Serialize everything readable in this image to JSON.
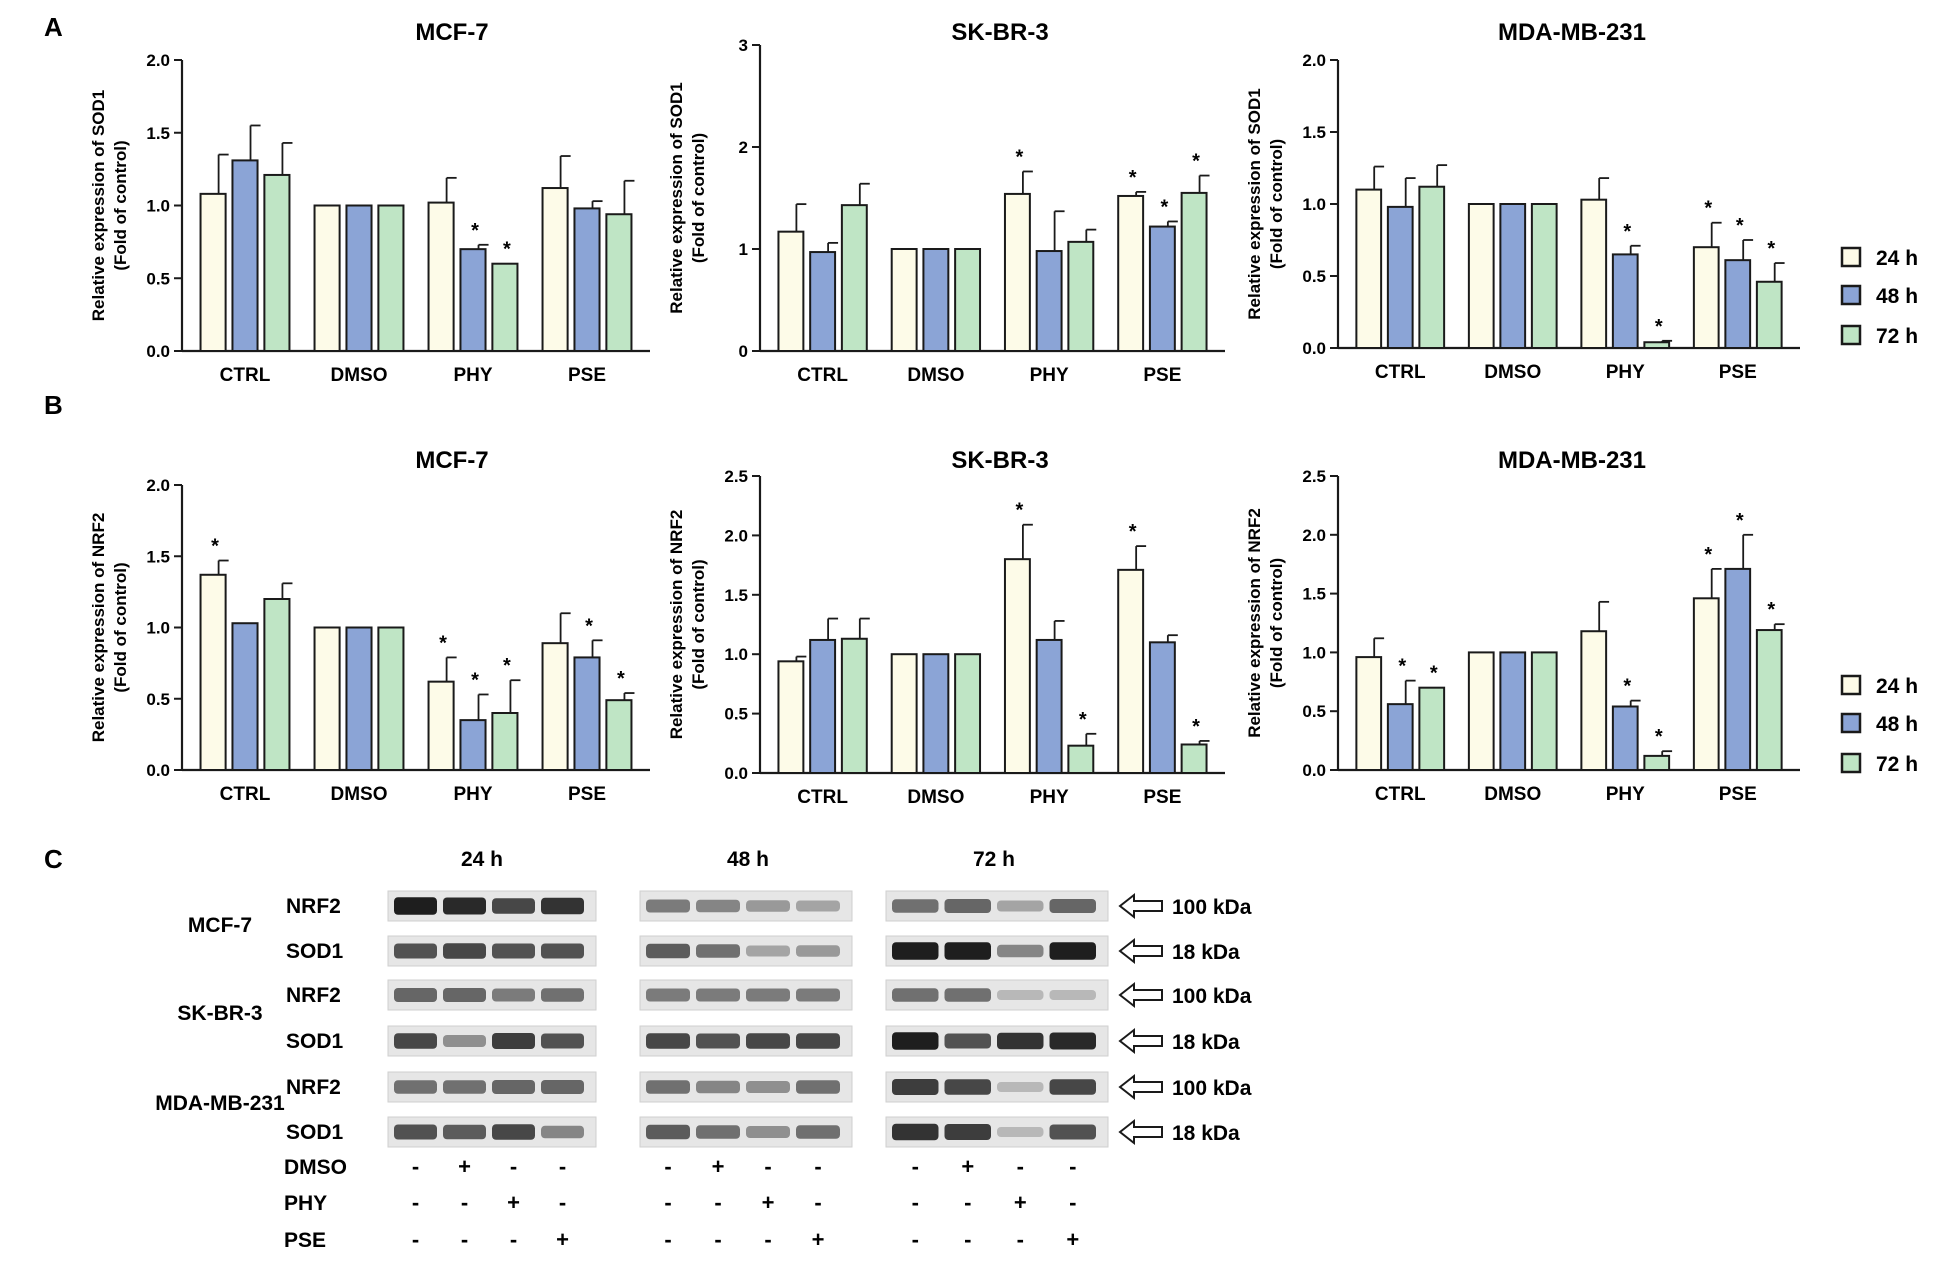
{
  "panels": {
    "a": "A",
    "b": "B",
    "c": "C"
  },
  "series_names": [
    "24 h",
    "48 h",
    "72 h"
  ],
  "colors": {
    "s24": "#fdfbe8",
    "s48": "#8ba4d6",
    "s72": "#bfe5c5",
    "stroke": "#1a1a1a"
  },
  "chart_data": [
    {
      "type": "bar",
      "title": "MCF-7",
      "ylabel": "Relative expression of SOD1",
      "ylabel2": "(Fold of control)",
      "categories": [
        "CTRL",
        "DMSO",
        "PHY",
        "PSE"
      ],
      "ylim": [
        0,
        2
      ],
      "yticks": [
        "0.0",
        "0.5",
        "1.0",
        "1.5",
        "2.0"
      ],
      "series": [
        {
          "name": "24 h",
          "values": [
            1.08,
            1.0,
            1.02,
            1.12
          ],
          "errors": [
            0.27,
            0,
            0.17,
            0.22
          ],
          "stars": [
            false,
            false,
            false,
            false
          ]
        },
        {
          "name": "48 h",
          "values": [
            1.31,
            1.0,
            0.7,
            0.98
          ],
          "errors": [
            0.24,
            0,
            0.03,
            0.05
          ],
          "stars": [
            false,
            false,
            true,
            false
          ]
        },
        {
          "name": "72 h",
          "values": [
            1.21,
            1.0,
            0.6,
            0.94
          ],
          "errors": [
            0.22,
            0,
            0,
            0.23
          ],
          "stars": [
            false,
            false,
            true,
            false
          ]
        }
      ]
    },
    {
      "type": "bar",
      "title": "SK-BR-3",
      "ylabel": "Relative expression of SOD1",
      "ylabel2": "(Fold of control)",
      "categories": [
        "CTRL",
        "DMSO",
        "PHY",
        "PSE"
      ],
      "ylim": [
        0,
        3
      ],
      "yticks": [
        "0",
        "1",
        "2",
        "3"
      ],
      "series": [
        {
          "name": "24 h",
          "values": [
            1.17,
            1.0,
            1.54,
            1.52
          ],
          "errors": [
            0.27,
            0,
            0.22,
            0.04
          ],
          "stars": [
            false,
            false,
            true,
            true
          ]
        },
        {
          "name": "48 h",
          "values": [
            0.97,
            1.0,
            0.98,
            1.22
          ],
          "errors": [
            0.09,
            0,
            0.39,
            0.05
          ],
          "stars": [
            false,
            false,
            false,
            true
          ]
        },
        {
          "name": "72 h",
          "values": [
            1.43,
            1.0,
            1.07,
            1.55
          ],
          "errors": [
            0.21,
            0,
            0.12,
            0.17
          ],
          "stars": [
            false,
            false,
            false,
            true
          ]
        }
      ]
    },
    {
      "type": "bar",
      "title": "MDA-MB-231",
      "ylabel": "Relative expression of SOD1",
      "ylabel2": "(Fold of control)",
      "categories": [
        "CTRL",
        "DMSO",
        "PHY",
        "PSE"
      ],
      "ylim": [
        0,
        2
      ],
      "yticks": [
        "0.0",
        "0.5",
        "1.0",
        "1.5",
        "2.0"
      ],
      "series": [
        {
          "name": "24 h",
          "values": [
            1.1,
            1.0,
            1.03,
            0.7
          ],
          "errors": [
            0.16,
            0,
            0.15,
            0.17
          ],
          "stars": [
            false,
            false,
            false,
            true
          ]
        },
        {
          "name": "48 h",
          "values": [
            0.98,
            1.0,
            0.65,
            0.61
          ],
          "errors": [
            0.2,
            0,
            0.06,
            0.14
          ],
          "stars": [
            false,
            false,
            true,
            true
          ]
        },
        {
          "name": "72 h",
          "values": [
            1.12,
            1.0,
            0.04,
            0.46
          ],
          "errors": [
            0.15,
            0,
            0.01,
            0.13
          ],
          "stars": [
            false,
            false,
            true,
            true
          ]
        }
      ]
    },
    {
      "type": "bar",
      "title": "MCF-7",
      "ylabel": "Relative expression of NRF2",
      "ylabel2": "(Fold of control)",
      "categories": [
        "CTRL",
        "DMSO",
        "PHY",
        "PSE"
      ],
      "ylim": [
        0,
        2
      ],
      "yticks": [
        "0.0",
        "0.5",
        "1.0",
        "1.5",
        "2.0"
      ],
      "series": [
        {
          "name": "24 h",
          "values": [
            1.37,
            1.0,
            0.62,
            0.89
          ],
          "errors": [
            0.1,
            0,
            0.17,
            0.21
          ],
          "stars": [
            true,
            false,
            true,
            false
          ]
        },
        {
          "name": "48 h",
          "values": [
            1.03,
            1.0,
            0.35,
            0.79
          ],
          "errors": [
            0,
            0,
            0.18,
            0.12
          ],
          "stars": [
            false,
            false,
            true,
            true
          ]
        },
        {
          "name": "72 h",
          "values": [
            1.2,
            1.0,
            0.4,
            0.49
          ],
          "errors": [
            0.11,
            0,
            0.23,
            0.05
          ],
          "stars": [
            false,
            false,
            true,
            true
          ]
        }
      ]
    },
    {
      "type": "bar",
      "title": "SK-BR-3",
      "ylabel": "Relative expression of NRF2",
      "ylabel2": "(Fold of control)",
      "categories": [
        "CTRL",
        "DMSO",
        "PHY",
        "PSE"
      ],
      "ylim": [
        0,
        2.5
      ],
      "yticks": [
        "0.0",
        "0.5",
        "1.0",
        "1.5",
        "2.0",
        "2.5"
      ],
      "series": [
        {
          "name": "24 h",
          "values": [
            0.94,
            1.0,
            1.8,
            1.71
          ],
          "errors": [
            0.04,
            0,
            0.29,
            0.2
          ],
          "stars": [
            false,
            false,
            true,
            true
          ]
        },
        {
          "name": "48 h",
          "values": [
            1.12,
            1.0,
            1.12,
            1.1
          ],
          "errors": [
            0.18,
            0,
            0.16,
            0.06
          ],
          "stars": [
            false,
            false,
            false,
            false
          ]
        },
        {
          "name": "72 h",
          "values": [
            1.13,
            1.0,
            0.23,
            0.24
          ],
          "errors": [
            0.17,
            0,
            0.1,
            0.03
          ],
          "stars": [
            false,
            false,
            true,
            true
          ]
        }
      ]
    },
    {
      "type": "bar",
      "title": "MDA-MB-231",
      "ylabel": "Relative expression of NRF2",
      "ylabel2": "(Fold of control)",
      "categories": [
        "CTRL",
        "DMSO",
        "PHY",
        "PSE"
      ],
      "ylim": [
        0,
        2.5
      ],
      "yticks": [
        "0.0",
        "0.5",
        "1.0",
        "1.5",
        "2.0",
        "2.5"
      ],
      "series": [
        {
          "name": "24 h",
          "values": [
            0.96,
            1.0,
            1.18,
            1.46
          ],
          "errors": [
            0.16,
            0,
            0.25,
            0.25
          ],
          "stars": [
            false,
            false,
            false,
            true
          ]
        },
        {
          "name": "48 h",
          "values": [
            0.56,
            1.0,
            0.54,
            1.71
          ],
          "errors": [
            0.2,
            0,
            0.05,
            0.29
          ],
          "stars": [
            true,
            false,
            true,
            true
          ]
        },
        {
          "name": "72 h",
          "values": [
            0.7,
            1.0,
            0.12,
            1.19
          ],
          "errors": [
            0,
            0,
            0.04,
            0.05
          ],
          "stars": [
            true,
            false,
            true,
            true
          ]
        }
      ]
    }
  ],
  "blot": {
    "timepoints": [
      "24 h",
      "48 h",
      "72 h"
    ],
    "cell_lines": [
      "MCF-7",
      "SK-BR-3",
      "MDA-MB-231"
    ],
    "rows": [
      {
        "protein": "NRF2",
        "kda": "100 kDa"
      },
      {
        "protein": "SOD1",
        "kda": "18 kDa"
      },
      {
        "protein": "NRF2",
        "kda": "100 kDa"
      },
      {
        "protein": "SOD1",
        "kda": "18 kDa"
      },
      {
        "protein": "NRF2",
        "kda": "100 kDa"
      },
      {
        "protein": "SOD1",
        "kda": "18 kDa"
      }
    ],
    "treatments": [
      {
        "name": "DMSO",
        "signs": [
          "-",
          "+",
          "-",
          "-"
        ]
      },
      {
        "name": "PHY",
        "signs": [
          "-",
          "-",
          "+",
          "-"
        ]
      },
      {
        "name": "PSE",
        "signs": [
          "-",
          "-",
          "-",
          "+"
        ]
      }
    ],
    "intensity": [
      [
        [
          0.95,
          0.9,
          0.75,
          0.85
        ],
        [
          0.5,
          0.45,
          0.35,
          0.3
        ],
        [
          0.55,
          0.6,
          0.3,
          0.6
        ]
      ],
      [
        [
          0.7,
          0.75,
          0.7,
          0.7
        ],
        [
          0.65,
          0.55,
          0.3,
          0.35
        ],
        [
          0.95,
          0.95,
          0.45,
          0.95
        ]
      ],
      [
        [
          0.6,
          0.6,
          0.5,
          0.55
        ],
        [
          0.5,
          0.5,
          0.5,
          0.5
        ],
        [
          0.55,
          0.55,
          0.2,
          0.2
        ]
      ],
      [
        [
          0.75,
          0.4,
          0.8,
          0.7
        ],
        [
          0.75,
          0.7,
          0.75,
          0.75
        ],
        [
          0.95,
          0.7,
          0.85,
          0.9
        ]
      ],
      [
        [
          0.55,
          0.55,
          0.6,
          0.6
        ],
        [
          0.55,
          0.45,
          0.4,
          0.55
        ],
        [
          0.8,
          0.75,
          0.2,
          0.75
        ]
      ],
      [
        [
          0.7,
          0.65,
          0.75,
          0.45
        ],
        [
          0.65,
          0.55,
          0.4,
          0.55
        ],
        [
          0.85,
          0.8,
          0.2,
          0.7
        ]
      ]
    ]
  }
}
